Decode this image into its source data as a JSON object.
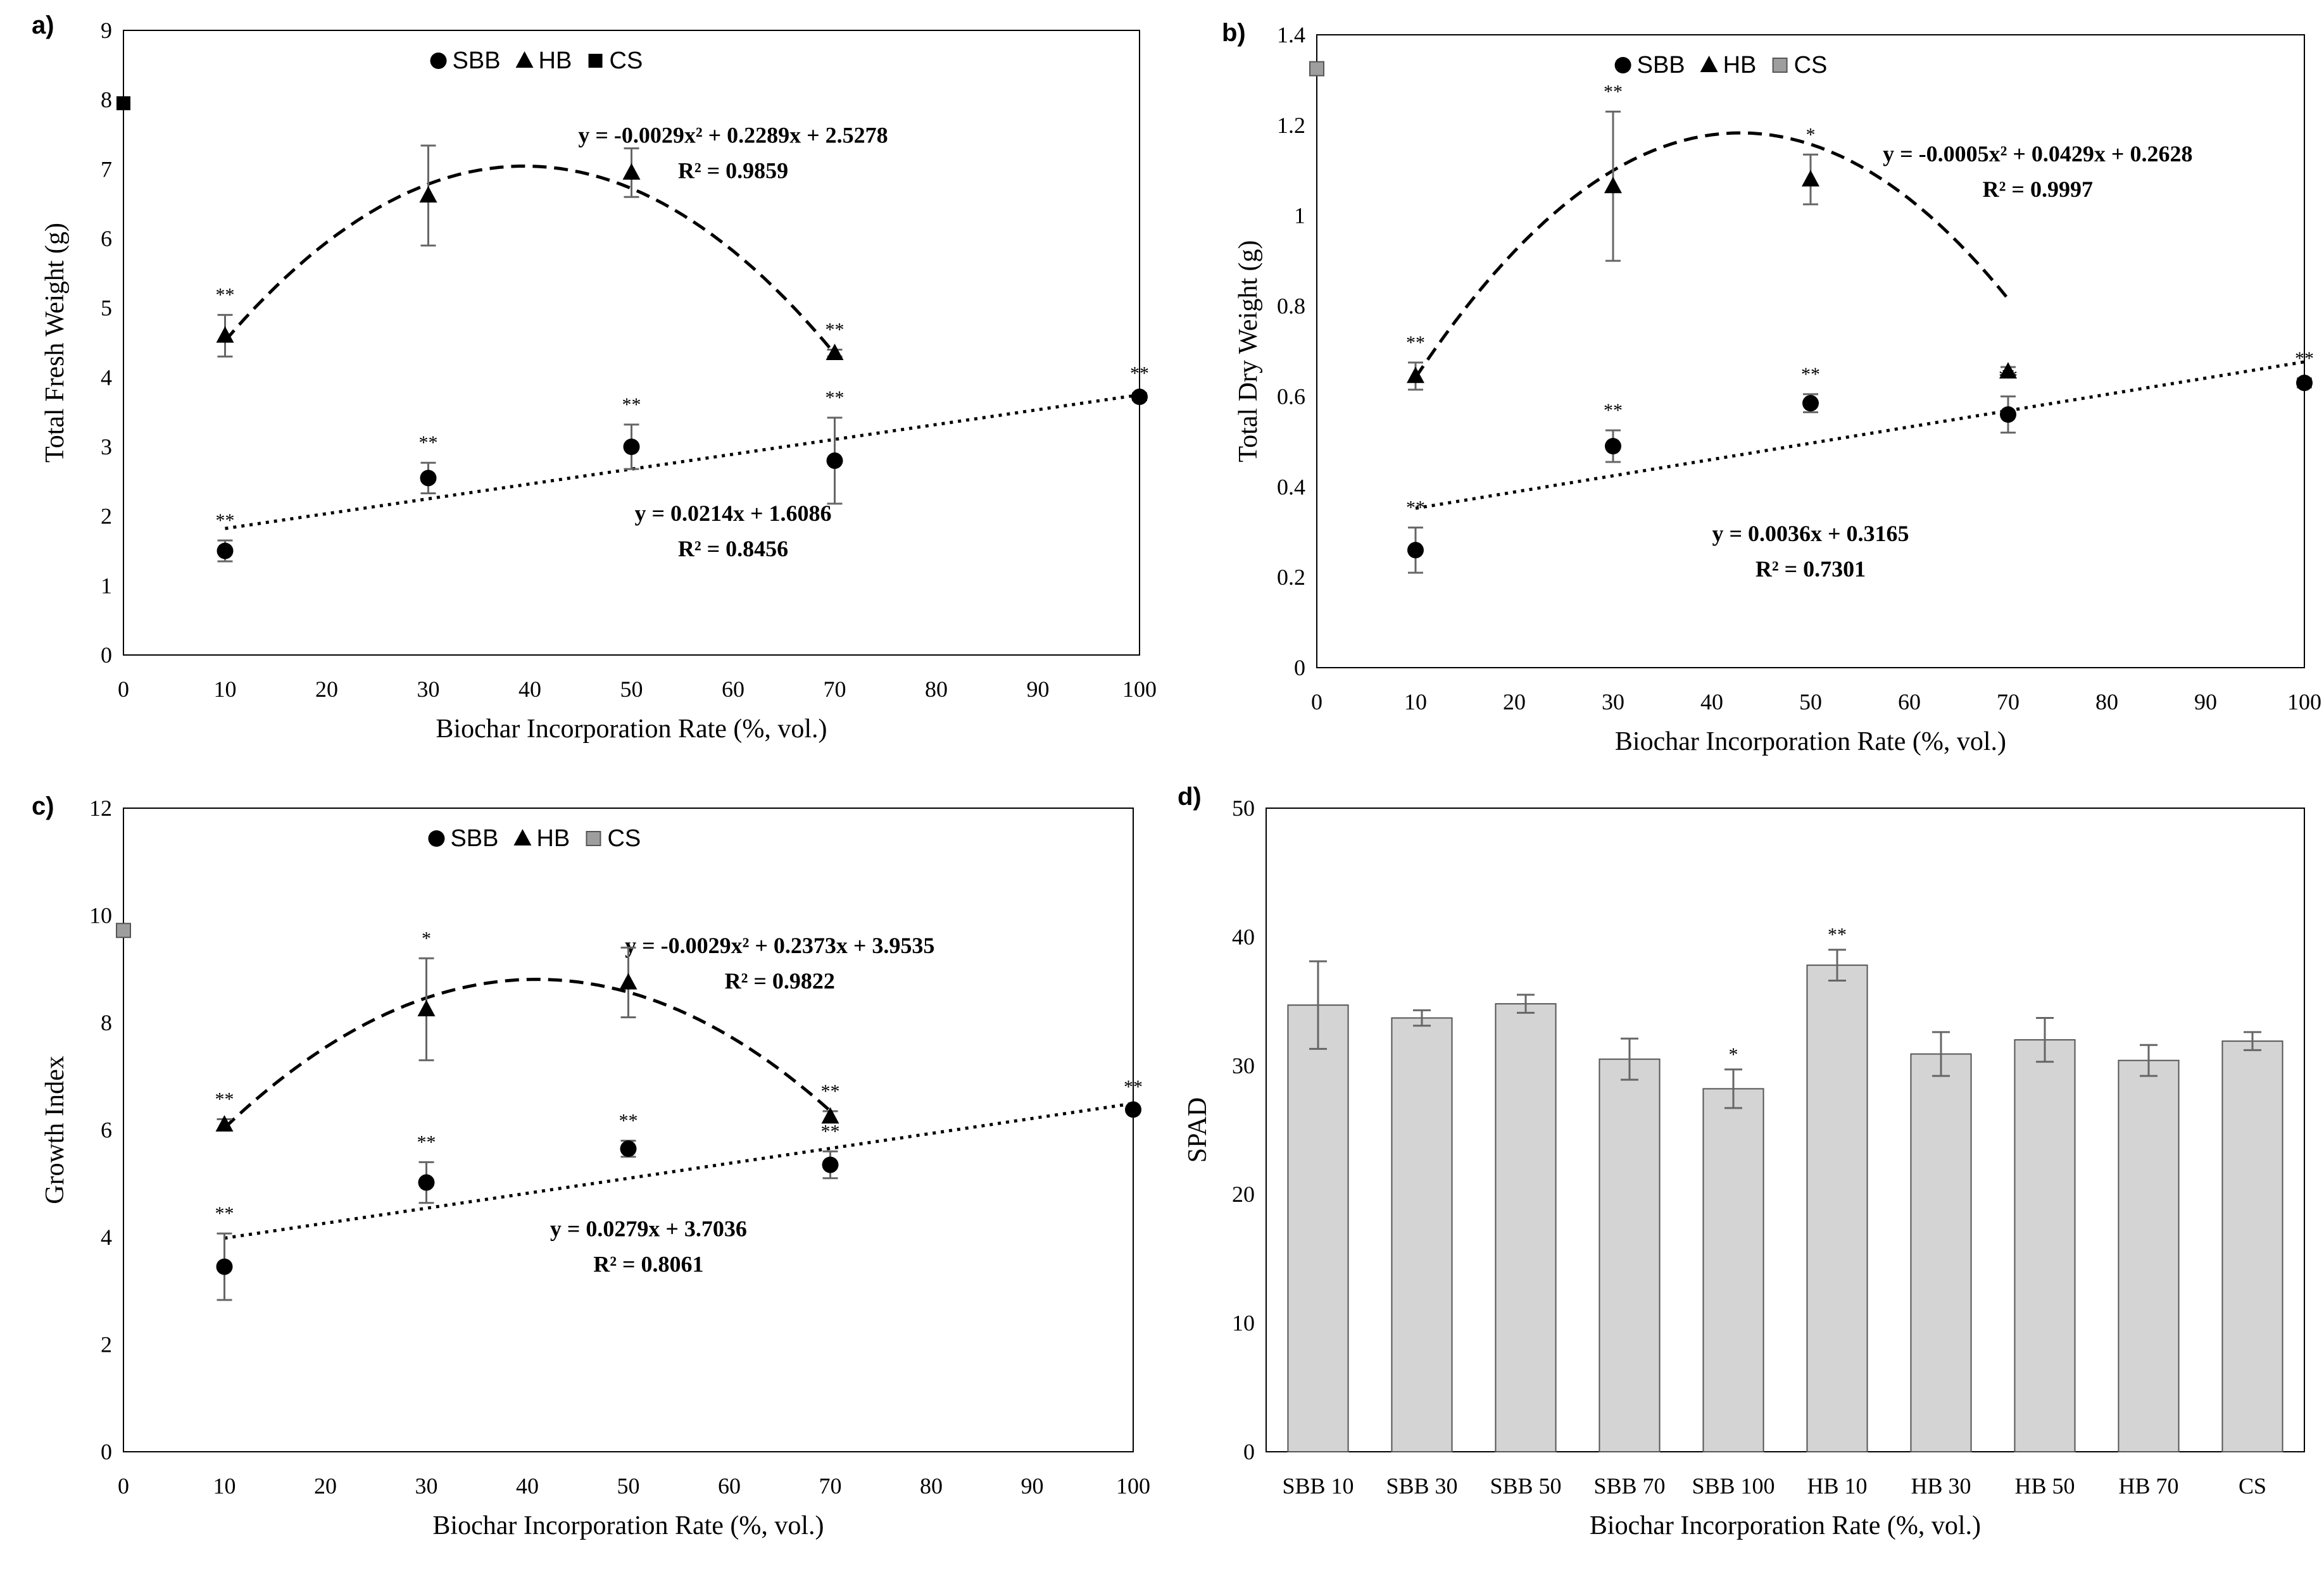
{
  "panels": {
    "a": {
      "letter": "a)"
    },
    "b": {
      "letter": "b)"
    },
    "c": {
      "letter": "c)"
    },
    "d": {
      "letter": "d)"
    }
  },
  "colors": {
    "bar_fill": "#d4d4d4",
    "line": "#000000",
    "error_bar": "#666666",
    "cs_gray": "#9e9e9e"
  },
  "chart_data": [
    {
      "id": "a",
      "type": "scatter",
      "title": "",
      "xlabel": "Biochar Incorporation Rate (%, vol.)",
      "ylabel": "Total Fresh Weight (g)",
      "xlim": [
        0,
        100
      ],
      "ylim": [
        0,
        9
      ],
      "xticks": [
        0,
        10,
        20,
        30,
        40,
        50,
        60,
        70,
        80,
        90,
        100
      ],
      "yticks": [
        0,
        1,
        2,
        3,
        4,
        5,
        6,
        7,
        8,
        9
      ],
      "legend": {
        "position": "top-center",
        "entries": [
          "SBB",
          "HB",
          "CS"
        ]
      },
      "series": [
        {
          "name": "SBB",
          "marker": "circle",
          "x": [
            10,
            30,
            50,
            70,
            100
          ],
          "y": [
            1.5,
            2.55,
            3.0,
            2.8,
            3.72
          ],
          "err": [
            0.15,
            0.22,
            0.32,
            0.62,
            0.05
          ],
          "sig": [
            "**",
            "**",
            "**",
            "**",
            "**"
          ]
        },
        {
          "name": "HB",
          "marker": "triangle",
          "x": [
            10,
            30,
            50,
            70
          ],
          "y": [
            4.6,
            6.62,
            6.95,
            4.35
          ],
          "err": [
            0.3,
            0.72,
            0.35,
            0.05
          ],
          "sig": [
            "**",
            "",
            "",
            "**"
          ]
        },
        {
          "name": "CS",
          "marker": "square",
          "x": [
            0
          ],
          "y": [
            7.95
          ],
          "err": [
            0
          ],
          "sig": [
            ""
          ]
        }
      ],
      "fits": [
        {
          "series": "HB",
          "kind": "poly2",
          "coef": [
            -0.0029,
            0.2289,
            2.5278
          ],
          "x_range": [
            10,
            70
          ],
          "style": "dashed",
          "equation": "y = -0.0029x² + 0.2289x + 2.5278",
          "r2": "R² = 0.9859"
        },
        {
          "series": "SBB",
          "kind": "linear",
          "coef": [
            0.0214,
            1.6086
          ],
          "x_range": [
            10,
            100
          ],
          "style": "dotted",
          "equation": "y = 0.0214x + 1.6086",
          "r2": "R² = 0.8456"
        }
      ]
    },
    {
      "id": "b",
      "type": "scatter",
      "title": "",
      "xlabel": "Biochar Incorporation Rate (%, vol.)",
      "ylabel": "Total Dry Weight (g)",
      "xlim": [
        0,
        100
      ],
      "ylim": [
        0,
        1.4
      ],
      "xticks": [
        0,
        10,
        20,
        30,
        40,
        50,
        60,
        70,
        80,
        90,
        100
      ],
      "yticks": [
        0,
        0.2,
        0.4,
        0.6,
        0.8,
        1,
        1.2,
        1.4
      ],
      "legend": {
        "position": "top-center",
        "entries": [
          "SBB",
          "HB",
          "CS"
        ]
      },
      "series": [
        {
          "name": "SBB",
          "marker": "circle",
          "x": [
            10,
            30,
            50,
            70,
            100
          ],
          "y": [
            0.26,
            0.49,
            0.585,
            0.56,
            0.63
          ],
          "err": [
            0.05,
            0.035,
            0.02,
            0.04,
            0.01
          ],
          "sig": [
            "**",
            "**",
            "**",
            "**",
            "**"
          ]
        },
        {
          "name": "HB",
          "marker": "triangle",
          "x": [
            10,
            30,
            50,
            70
          ],
          "y": [
            0.645,
            1.065,
            1.08,
            0.655
          ],
          "err": [
            0.03,
            0.165,
            0.055,
            0.01
          ],
          "sig": [
            "**",
            "**",
            "*",
            ""
          ]
        },
        {
          "name": "CS",
          "marker": "square-gray",
          "x": [
            0
          ],
          "y": [
            1.325
          ],
          "err": [
            0
          ],
          "sig": [
            ""
          ]
        }
      ],
      "fits": [
        {
          "series": "HB",
          "kind": "poly2",
          "coef": [
            -0.0005,
            0.0429,
            0.2628
          ],
          "x_range": [
            10,
            70
          ],
          "style": "dashed",
          "equation": "y = -0.0005x² + 0.0429x + 0.2628",
          "r2": "R² = 0.9997"
        },
        {
          "series": "SBB",
          "kind": "linear",
          "coef": [
            0.0036,
            0.3165
          ],
          "x_range": [
            10,
            100
          ],
          "style": "dotted",
          "equation": "y = 0.0036x + 0.3165",
          "r2": "R² = 0.7301"
        }
      ]
    },
    {
      "id": "c",
      "type": "scatter",
      "title": "",
      "xlabel": "Biochar Incorporation Rate (%, vol.)",
      "ylabel": "Growth Index",
      "xlim": [
        0,
        100
      ],
      "ylim": [
        0,
        12
      ],
      "xticks": [
        0,
        10,
        20,
        30,
        40,
        50,
        60,
        70,
        80,
        90,
        100
      ],
      "yticks": [
        0,
        2,
        4,
        6,
        8,
        10,
        12
      ],
      "legend": {
        "position": "top-center",
        "entries": [
          "SBB",
          "HB",
          "CS"
        ]
      },
      "series": [
        {
          "name": "SBB",
          "marker": "circle",
          "x": [
            10,
            30,
            50,
            70,
            100
          ],
          "y": [
            3.45,
            5.02,
            5.65,
            5.35,
            6.38
          ],
          "err": [
            0.62,
            0.38,
            0.15,
            0.25,
            0.05
          ],
          "sig": [
            "**",
            "**",
            "**",
            "**",
            "**"
          ]
        },
        {
          "name": "HB",
          "marker": "triangle",
          "x": [
            10,
            30,
            50,
            70
          ],
          "y": [
            6.1,
            8.25,
            8.75,
            6.25
          ],
          "err": [
            0.1,
            0.95,
            0.65,
            0.1
          ],
          "sig": [
            "**",
            "*",
            "",
            "**"
          ]
        },
        {
          "name": "CS",
          "marker": "square-gray",
          "x": [
            0
          ],
          "y": [
            9.72
          ],
          "err": [
            0
          ],
          "sig": [
            ""
          ]
        }
      ],
      "fits": [
        {
          "series": "HB",
          "kind": "poly2",
          "coef": [
            -0.0029,
            0.2373,
            3.9535
          ],
          "x_range": [
            10,
            70
          ],
          "style": "dashed",
          "equation": "y = -0.0029x² + 0.2373x + 3.9535",
          "r2": "R² = 0.9822"
        },
        {
          "series": "SBB",
          "kind": "linear",
          "coef": [
            0.0279,
            3.7036
          ],
          "x_range": [
            10,
            100
          ],
          "style": "dotted",
          "equation": "y = 0.0279x + 3.7036",
          "r2": "R² = 0.8061"
        }
      ]
    },
    {
      "id": "d",
      "type": "bar",
      "title": "",
      "xlabel": "Biochar Incorporation Rate (%, vol.)",
      "ylabel": "SPAD",
      "ylim": [
        0,
        50
      ],
      "yticks": [
        0,
        10,
        20,
        30,
        40,
        50
      ],
      "categories": [
        "SBB 10",
        "SBB 30",
        "SBB 50",
        "SBB 70",
        "SBB 100",
        "HB 10",
        "HB 30",
        "HB 50",
        "HB 70",
        "CS"
      ],
      "values": [
        34.7,
        33.7,
        34.8,
        30.5,
        28.2,
        37.8,
        30.9,
        32.0,
        30.4,
        31.9
      ],
      "err": [
        3.4,
        0.6,
        0.7,
        1.6,
        1.5,
        1.2,
        1.7,
        1.7,
        1.2,
        0.7
      ],
      "sig": [
        "",
        "",
        "",
        "",
        "*",
        "**",
        "",
        "",
        "",
        ""
      ]
    }
  ]
}
